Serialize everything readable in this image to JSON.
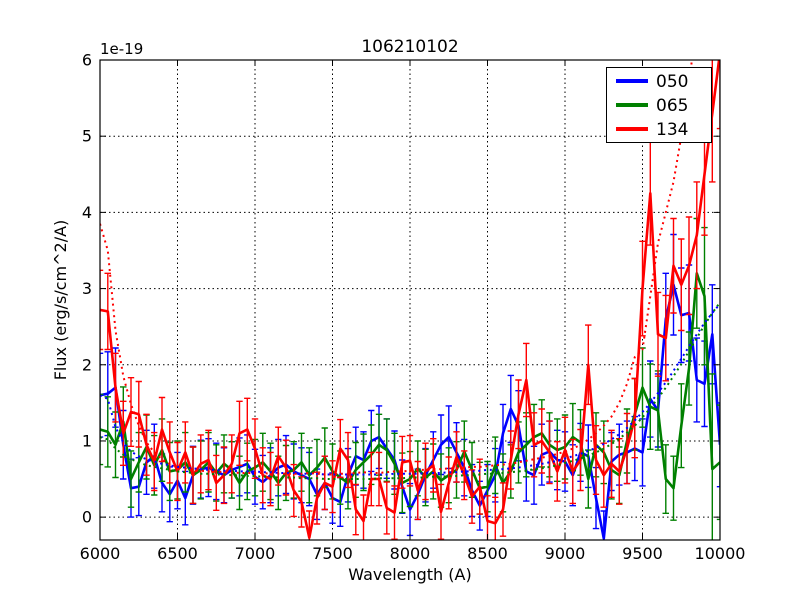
{
  "chart": {
    "title": "106210102",
    "offset_text": "1e-19",
    "xlabel": "Wavelength (A)",
    "ylabel": "Flux (erg/s/cm^2/A)",
    "legend": {
      "position": "upper right",
      "entries": [
        {
          "label": "050",
          "color": "#0000ff"
        },
        {
          "label": "065",
          "color": "#008000"
        },
        {
          "label": "134",
          "color": "#ff0000"
        }
      ]
    }
  },
  "chart_data": {
    "type": "line",
    "title": "106210102",
    "xlabel": "Wavelength (A)",
    "ylabel": "Flux (erg/s/cm^2/A)",
    "y_offset_factor": "1e-19",
    "xlim": [
      6000,
      10000
    ],
    "ylim": [
      -0.3,
      6
    ],
    "xticks": [
      6000,
      6500,
      7000,
      7500,
      8000,
      8500,
      9000,
      9500,
      10000
    ],
    "yticks": [
      0,
      1,
      2,
      3,
      4,
      5,
      6
    ],
    "grid": true,
    "grid_style": "dotted",
    "legend_position": "upper right",
    "x": [
      6000,
      6050,
      6100,
      6150,
      6200,
      6250,
      6300,
      6350,
      6400,
      6450,
      6500,
      6550,
      6600,
      6650,
      6700,
      6750,
      6800,
      6850,
      6900,
      6950,
      7000,
      7050,
      7100,
      7150,
      7200,
      7250,
      7300,
      7350,
      7400,
      7450,
      7500,
      7550,
      7600,
      7650,
      7700,
      7750,
      7800,
      7850,
      7900,
      7950,
      8000,
      8050,
      8100,
      8150,
      8200,
      8250,
      8300,
      8350,
      8400,
      8450,
      8500,
      8550,
      8600,
      8650,
      8700,
      8750,
      8800,
      8850,
      8900,
      8950,
      9000,
      9050,
      9100,
      9150,
      9200,
      9250,
      9300,
      9350,
      9400,
      9450,
      9500,
      9550,
      9600,
      9650,
      9700,
      9750,
      9800,
      9850,
      9900,
      9950,
      10000
    ],
    "series": [
      {
        "name": "050",
        "color": "#0000ff",
        "style": "solid",
        "values": [
          1.6,
          1.62,
          1.7,
          0.95,
          0.38,
          0.4,
          0.72,
          0.8,
          0.45,
          0.3,
          0.48,
          0.25,
          0.55,
          0.63,
          0.65,
          0.6,
          0.55,
          0.62,
          0.66,
          0.7,
          0.53,
          0.46,
          0.55,
          0.65,
          0.69,
          0.6,
          0.55,
          0.5,
          0.3,
          0.45,
          0.25,
          0.2,
          0.55,
          0.8,
          0.75,
          1.0,
          1.05,
          0.9,
          0.75,
          0.4,
          0.1,
          0.3,
          0.55,
          0.75,
          0.95,
          1.05,
          0.85,
          0.65,
          0.35,
          0.15,
          0.35,
          0.55,
          1.1,
          1.42,
          1.2,
          0.6,
          0.55,
          0.82,
          0.86,
          0.75,
          0.73,
          0.55,
          0.85,
          0.8,
          0.25,
          -0.28,
          0.73,
          0.82,
          0.85,
          0.9,
          0.85,
          1.55,
          1.4,
          2.6,
          3.05,
          2.65,
          2.68,
          1.8,
          1.75,
          2.4,
          0.95
        ],
        "errors": [
          0.55,
          0.55,
          0.52,
          0.45,
          0.38,
          0.38,
          0.42,
          0.42,
          0.38,
          0.36,
          0.37,
          0.35,
          0.38,
          0.38,
          0.38,
          0.37,
          0.36,
          0.37,
          0.38,
          0.38,
          0.36,
          0.35,
          0.36,
          0.37,
          0.38,
          0.36,
          0.36,
          0.35,
          0.33,
          0.35,
          0.33,
          0.32,
          0.35,
          0.38,
          0.37,
          0.4,
          0.41,
          0.39,
          0.38,
          0.35,
          0.34,
          0.33,
          0.35,
          0.37,
          0.39,
          0.41,
          0.39,
          0.37,
          0.34,
          0.32,
          0.34,
          0.35,
          0.38,
          0.44,
          0.46,
          0.39,
          0.38,
          0.4,
          0.4,
          0.39,
          0.39,
          0.4,
          0.38,
          0.41,
          0.4,
          0.36,
          0.38,
          0.4,
          0.41,
          0.42,
          0.44,
          0.5,
          0.48,
          0.6,
          0.66,
          0.62,
          0.63,
          0.55,
          0.56,
          0.65,
          0.55
        ]
      },
      {
        "name": "065",
        "color": "#008000",
        "style": "solid",
        "values": [
          1.15,
          1.12,
          0.95,
          1.25,
          0.5,
          0.72,
          0.92,
          0.68,
          0.88,
          0.6,
          0.62,
          0.72,
          0.55,
          0.62,
          0.72,
          0.58,
          0.7,
          0.62,
          0.45,
          0.6,
          0.65,
          0.72,
          0.6,
          0.45,
          0.58,
          0.62,
          0.72,
          0.55,
          0.65,
          0.78,
          0.6,
          0.52,
          0.45,
          0.62,
          0.72,
          0.82,
          0.95,
          0.88,
          0.7,
          0.45,
          0.5,
          0.64,
          0.52,
          0.6,
          0.48,
          0.55,
          0.62,
          0.86,
          0.62,
          0.38,
          0.4,
          0.68,
          0.45,
          0.6,
          0.85,
          0.95,
          1.05,
          1.1,
          0.95,
          0.88,
          0.92,
          1.05,
          0.98,
          0.5,
          0.95,
          0.85,
          0.62,
          0.55,
          1.0,
          1.35,
          1.7,
          1.45,
          1.4,
          0.5,
          0.38,
          1.2,
          1.95,
          3.2,
          2.9,
          0.63,
          0.72
        ],
        "errors": [
          0.46,
          0.46,
          0.43,
          0.46,
          0.37,
          0.39,
          0.42,
          0.39,
          0.41,
          0.38,
          0.38,
          0.39,
          0.37,
          0.38,
          0.39,
          0.37,
          0.38,
          0.37,
          0.35,
          0.37,
          0.37,
          0.38,
          0.37,
          0.35,
          0.36,
          0.37,
          0.38,
          0.36,
          0.37,
          0.39,
          0.36,
          0.35,
          0.34,
          0.36,
          0.37,
          0.39,
          0.4,
          0.41,
          0.4,
          0.39,
          0.36,
          0.36,
          0.37,
          0.36,
          0.35,
          0.36,
          0.37,
          0.4,
          0.36,
          0.34,
          0.33,
          0.37,
          0.38,
          0.35,
          0.4,
          0.42,
          0.43,
          0.44,
          0.42,
          0.41,
          0.42,
          0.44,
          0.43,
          0.38,
          0.42,
          0.41,
          0.38,
          0.37,
          0.42,
          0.47,
          0.52,
          0.56,
          0.52,
          0.45,
          0.42,
          0.55,
          0.48,
          0.72,
          0.9,
          1.25,
          0.75
        ]
      },
      {
        "name": "134",
        "color": "#ff0000",
        "style": "solid",
        "values": [
          2.72,
          2.7,
          1.7,
          1.1,
          1.38,
          1.35,
          0.95,
          0.73,
          1.15,
          0.85,
          0.6,
          0.85,
          0.55,
          0.7,
          0.75,
          0.45,
          0.55,
          0.7,
          1.1,
          1.15,
          0.9,
          0.55,
          0.5,
          0.8,
          0.65,
          0.35,
          0.2,
          -0.27,
          0.25,
          0.45,
          0.4,
          0.9,
          0.75,
          0.1,
          -0.05,
          0.5,
          0.5,
          0.12,
          0.06,
          0.72,
          0.74,
          0.35,
          0.6,
          0.68,
          0.07,
          0.45,
          0.79,
          0.55,
          0.27,
          0.4,
          -0.05,
          -0.08,
          0.1,
          0.75,
          1.35,
          1.8,
          0.95,
          1.0,
          0.85,
          0.6,
          0.88,
          0.6,
          0.75,
          2.0,
          0.75,
          0.55,
          0.7,
          0.6,
          0.9,
          1.3,
          3.0,
          4.25,
          2.4,
          2.35,
          3.3,
          3.05,
          3.3,
          3.7,
          4.5,
          5.3,
          6.1
        ],
        "errors": [
          0.52,
          0.5,
          0.45,
          0.42,
          0.45,
          0.43,
          0.4,
          0.38,
          0.42,
          0.4,
          0.38,
          0.4,
          0.37,
          0.38,
          0.39,
          0.36,
          0.37,
          0.38,
          0.42,
          0.41,
          0.39,
          0.36,
          0.35,
          0.38,
          0.36,
          0.34,
          0.33,
          0.35,
          0.34,
          0.35,
          0.34,
          0.38,
          0.36,
          0.33,
          0.34,
          0.35,
          0.35,
          0.34,
          0.35,
          0.34,
          0.33,
          0.38,
          0.37,
          0.35,
          0.36,
          0.34,
          0.33,
          0.32,
          0.35,
          0.36,
          0.33,
          0.34,
          0.35,
          0.38,
          0.45,
          0.48,
          0.42,
          0.42,
          0.41,
          0.39,
          0.43,
          0.42,
          0.4,
          0.52,
          0.45,
          0.42,
          0.44,
          0.43,
          0.46,
          0.52,
          0.62,
          0.68,
          0.55,
          0.56,
          0.62,
          0.6,
          0.64,
          0.7,
          0.8,
          0.9,
          1.0
        ]
      },
      {
        "name": "050-noise",
        "color": "#0000ff",
        "style": "dotted",
        "values": [
          1.6,
          1.55,
          1.18,
          0.98,
          0.86,
          0.8,
          0.76,
          0.73,
          0.7,
          0.68,
          0.66,
          0.65,
          0.64,
          0.63,
          0.62,
          0.62,
          0.61,
          0.61,
          0.6,
          0.6,
          0.6,
          0.59,
          0.59,
          0.58,
          0.58,
          0.58,
          0.57,
          0.57,
          0.57,
          0.56,
          0.56,
          0.56,
          0.56,
          0.56,
          0.56,
          0.56,
          0.56,
          0.56,
          0.57,
          0.57,
          0.57,
          0.57,
          0.58,
          0.58,
          0.58,
          0.59,
          0.59,
          0.6,
          0.6,
          0.61,
          0.62,
          0.62,
          0.63,
          0.64,
          0.65,
          0.67,
          0.68,
          0.7,
          0.72,
          0.74,
          0.77,
          0.8,
          0.83,
          0.87,
          0.91,
          0.96,
          1.02,
          1.09,
          1.17,
          1.27,
          1.38,
          1.5,
          1.63,
          1.77,
          1.92,
          2.08,
          2.24,
          2.4,
          2.55,
          2.68,
          2.8
        ]
      },
      {
        "name": "065-noise",
        "color": "#008000",
        "style": "dotted",
        "values": [
          1.05,
          1.02,
          0.9,
          0.82,
          0.76,
          0.72,
          0.68,
          0.66,
          0.64,
          0.62,
          0.6,
          0.59,
          0.58,
          0.57,
          0.57,
          0.56,
          0.56,
          0.55,
          0.55,
          0.54,
          0.54,
          0.53,
          0.53,
          0.52,
          0.52,
          0.52,
          0.51,
          0.51,
          0.51,
          0.5,
          0.5,
          0.5,
          0.5,
          0.5,
          0.5,
          0.5,
          0.51,
          0.51,
          0.51,
          0.51,
          0.52,
          0.52,
          0.52,
          0.53,
          0.53,
          0.54,
          0.54,
          0.55,
          0.55,
          0.56,
          0.57,
          0.57,
          0.58,
          0.59,
          0.6,
          0.61,
          0.63,
          0.64,
          0.66,
          0.68,
          0.71,
          0.74,
          0.77,
          0.81,
          0.85,
          0.9,
          0.96,
          1.03,
          1.11,
          1.2,
          1.31,
          1.43,
          1.56,
          1.7,
          1.85,
          2.01,
          2.18,
          2.35,
          2.52,
          2.68,
          2.82
        ]
      },
      {
        "name": "134-noise",
        "color": "#ff0000",
        "style": "dotted",
        "values": [
          3.85,
          3.5,
          2.45,
          1.85,
          1.48,
          1.2,
          0.98,
          0.85,
          0.76,
          0.7,
          0.66,
          0.64,
          0.62,
          0.61,
          0.6,
          0.6,
          0.59,
          0.59,
          0.58,
          0.58,
          0.58,
          0.58,
          0.57,
          0.57,
          0.57,
          0.57,
          0.57,
          0.58,
          0.57,
          0.56,
          0.56,
          0.57,
          0.57,
          0.58,
          0.59,
          0.58,
          0.58,
          0.59,
          0.6,
          0.6,
          0.61,
          0.62,
          0.62,
          0.63,
          0.63,
          0.64,
          0.64,
          0.65,
          0.66,
          0.66,
          0.67,
          0.68,
          0.69,
          0.7,
          0.72,
          0.74,
          0.76,
          0.78,
          0.8,
          0.83,
          0.86,
          0.9,
          0.95,
          1.02,
          1.1,
          1.2,
          1.32,
          1.5,
          1.75,
          2.1,
          2.2,
          2.9,
          3.6,
          4.0,
          4.4,
          5.0,
          5.7,
          6.5,
          7.3,
          8.0,
          8.6
        ]
      }
    ]
  }
}
